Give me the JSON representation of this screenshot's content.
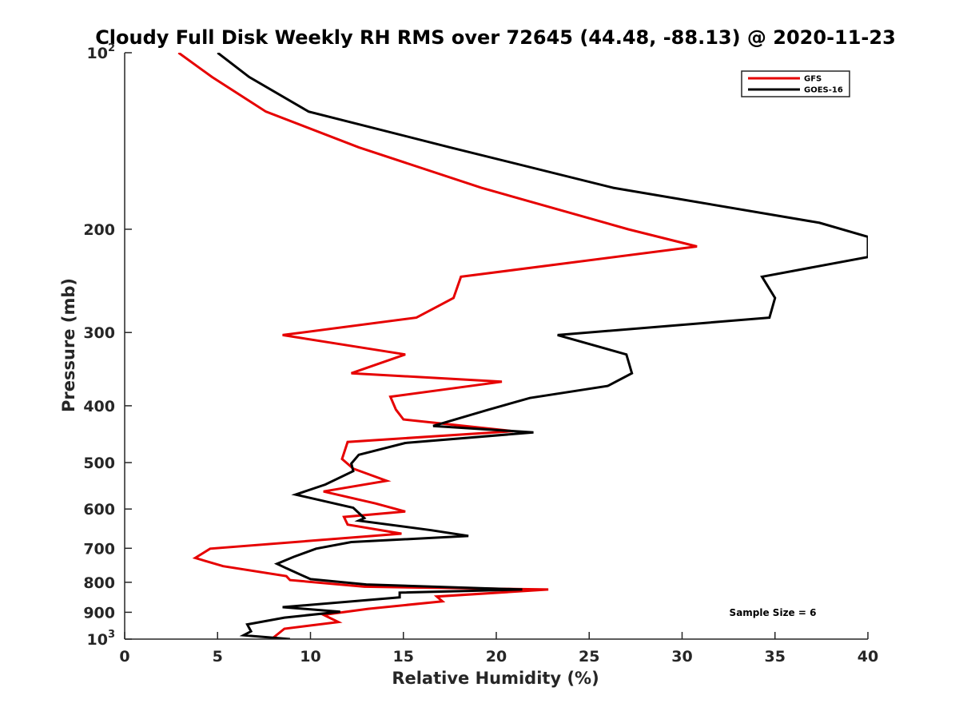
{
  "chart_data": {
    "type": "line",
    "title": "Cloudy Full Disk Weekly RH RMS over 72645 (44.48, -88.13) @ 2020-11-23",
    "xlabel": "Relative Humidity (%)",
    "ylabel": "Pressure (mb)",
    "xlim": [
      0,
      40
    ],
    "ylim": [
      100,
      1000
    ],
    "y_scale": "log",
    "y_reversed": true,
    "x_ticks": [
      0,
      5,
      10,
      15,
      20,
      25,
      30,
      35,
      40
    ],
    "x_tick_labels": [
      "0",
      "5",
      "10",
      "15",
      "20",
      "25",
      "30",
      "35",
      "40"
    ],
    "y_ticks": [
      100,
      200,
      300,
      400,
      500,
      600,
      700,
      800,
      900,
      1000
    ],
    "y_tick_labels": [
      {
        "base": "10",
        "exp": "2"
      },
      {
        "base": "200",
        "exp": ""
      },
      {
        "base": "300",
        "exp": ""
      },
      {
        "base": "400",
        "exp": ""
      },
      {
        "base": "500",
        "exp": ""
      },
      {
        "base": "600",
        "exp": ""
      },
      {
        "base": "700",
        "exp": ""
      },
      {
        "base": "800",
        "exp": ""
      },
      {
        "base": "900",
        "exp": ""
      },
      {
        "base": "10",
        "exp": "3"
      }
    ],
    "grid": false,
    "legend_position": "top-right",
    "annotation": "Sample Size = 6",
    "series": [
      {
        "name": "GFS",
        "color": "#e60000",
        "x": [
          2.9,
          4.7,
          7.6,
          12.6,
          19.2,
          27.1,
          30.8,
          18.1,
          17.7,
          15.7,
          8.5,
          15.1,
          12.2,
          20.3,
          14.3,
          14.6,
          15.0,
          20.9,
          12.0,
          11.7,
          12.3,
          14.1,
          10.7,
          13.5,
          15.1,
          11.8,
          12.0,
          14.9,
          4.6,
          3.8,
          5.3,
          8.7,
          8.9,
          12.9,
          22.8,
          16.8,
          17.1,
          13.1,
          10.7,
          11.5,
          8.6,
          7.9
        ],
        "y": [
          100,
          110,
          126,
          145,
          170,
          200,
          214,
          241,
          262,
          283,
          303,
          327,
          352,
          364,
          386,
          406,
          422,
          442,
          461,
          493,
          512,
          537,
          560,
          587,
          606,
          619,
          638,
          661,
          701,
          727,
          751,
          781,
          793,
          814,
          823,
          846,
          862,
          888,
          909,
          935,
          960,
          1000
        ]
      },
      {
        "name": "GOES-16",
        "color": "#000000",
        "x": [
          5.0,
          6.7,
          9.9,
          17.5,
          26.3,
          37.4,
          40.0,
          40.0,
          34.3,
          35.0,
          34.7,
          23.3,
          27.0,
          27.3,
          26.0,
          21.8,
          19.6,
          16.6,
          22.0,
          15.1,
          12.6,
          12.2,
          12.3,
          10.8,
          9.2,
          12.3,
          12.9,
          12.6,
          16.5,
          18.5,
          12.2,
          10.3,
          9.1,
          8.2,
          8.7,
          10.0,
          13.0,
          21.4,
          14.8,
          14.8,
          8.5,
          11.6,
          8.6,
          6.6,
          6.8,
          6.4,
          8.9
        ],
        "y": [
          100,
          110,
          126,
          145,
          170,
          195,
          206,
          223,
          241,
          262,
          283,
          303,
          327,
          352,
          370,
          388,
          406,
          433,
          444,
          463,
          485,
          502,
          517,
          545,
          567,
          597,
          622,
          628,
          652,
          667,
          683,
          701,
          724,
          744,
          757,
          790,
          807,
          823,
          833,
          849,
          882,
          898,
          919,
          944,
          970,
          985,
          1000
        ]
      }
    ]
  }
}
